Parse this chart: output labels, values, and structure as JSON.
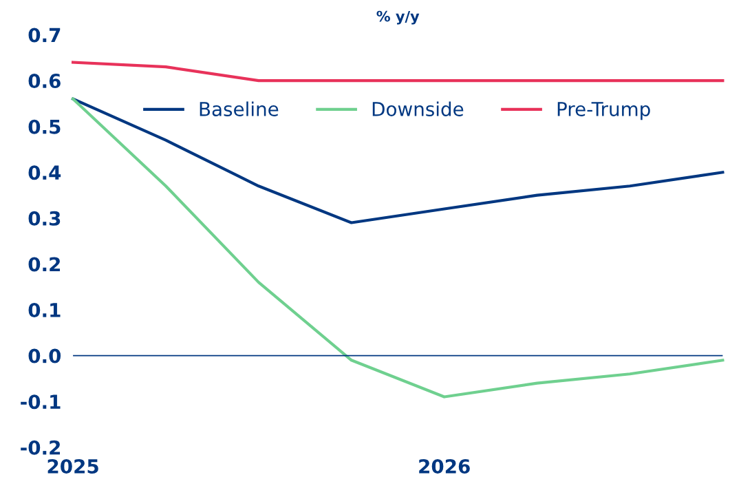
{
  "chart_data": {
    "type": "line",
    "title": "% y/y",
    "categories": [
      "2025",
      null,
      null,
      null,
      "2026",
      null,
      null,
      null
    ],
    "series": [
      {
        "name": "Baseline",
        "color": "#003781",
        "values": [
          0.56,
          0.47,
          0.37,
          0.29,
          0.32,
          0.35,
          0.37,
          0.4
        ]
      },
      {
        "name": "Downside",
        "color": "#6fd08f",
        "values": [
          0.56,
          0.37,
          0.16,
          -0.01,
          -0.09,
          -0.06,
          -0.04,
          -0.01
        ]
      },
      {
        "name": "Pre-Trump",
        "color": "#e8325a",
        "values": [
          0.64,
          0.63,
          0.6,
          0.6,
          0.6,
          0.6,
          0.6,
          0.6
        ]
      }
    ],
    "ylim": [
      -0.2,
      0.7
    ],
    "yticks": [
      {
        "value": 0.7,
        "label": "0.7"
      },
      {
        "value": 0.6,
        "label": "0.6"
      },
      {
        "value": 0.5,
        "label": "0.5"
      },
      {
        "value": 0.4,
        "label": "0.4"
      },
      {
        "value": 0.3,
        "label": "0.3"
      },
      {
        "value": 0.2,
        "label": "0.2"
      },
      {
        "value": 0.1,
        "label": "0.1"
      },
      {
        "value": 0.0,
        "label": "0.0"
      },
      {
        "value": -0.1,
        "label": "-0.1"
      },
      {
        "value": -0.2,
        "label": "-0.2"
      }
    ],
    "ref_lines": [
      {
        "axis": "y",
        "value": 0,
        "color": "#003781",
        "line_style": "solid"
      }
    ],
    "legend": "top",
    "grid": false,
    "marker": "none",
    "line_style": "solid"
  }
}
